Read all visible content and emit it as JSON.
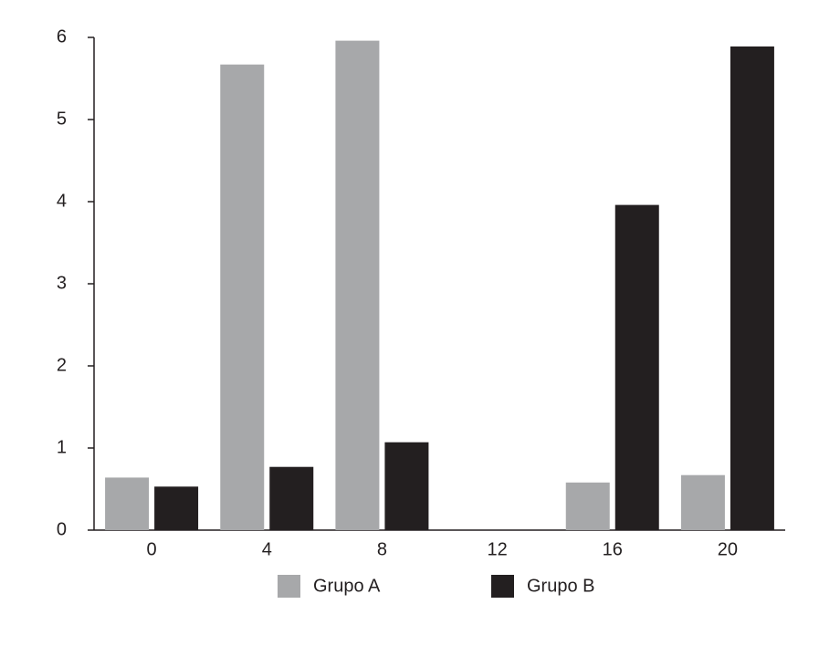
{
  "chart_data": {
    "type": "bar",
    "categories": [
      "0",
      "4",
      "8",
      "12",
      "16",
      "20"
    ],
    "series": [
      {
        "name": "Grupo A",
        "color": "#a7a8aa",
        "values": [
          0.64,
          5.67,
          5.96,
          null,
          0.58,
          0.67
        ]
      },
      {
        "name": "Grupo B",
        "color": "#231f20",
        "values": [
          0.53,
          0.77,
          1.07,
          null,
          3.96,
          5.89
        ]
      }
    ],
    "ylim": [
      0,
      6
    ],
    "yticks": [
      0,
      1,
      2,
      3,
      4,
      5,
      6
    ],
    "grid": false,
    "legend": "bottom"
  }
}
